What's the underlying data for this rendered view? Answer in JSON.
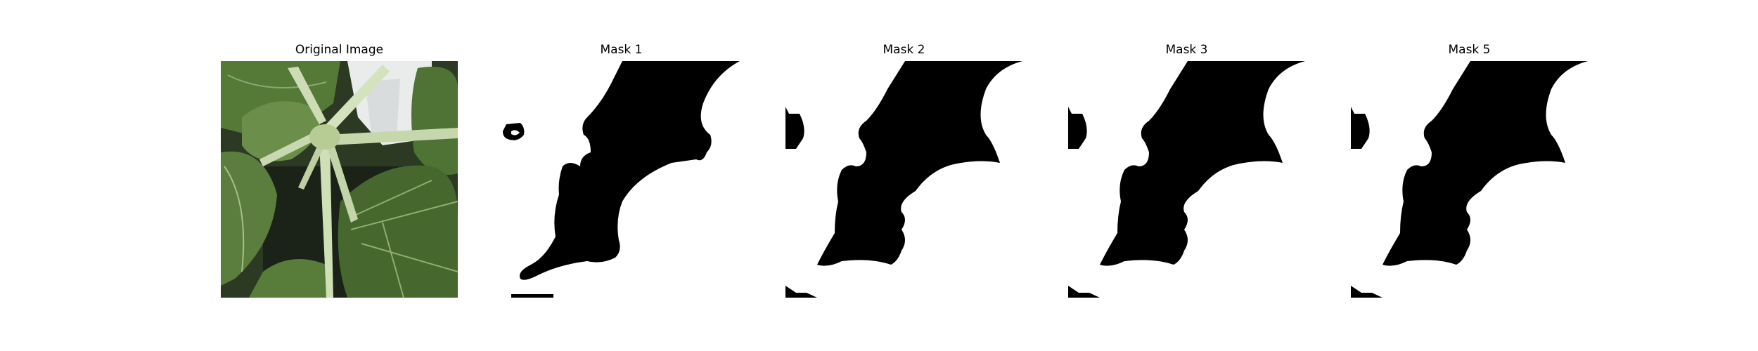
{
  "panels": [
    {
      "title": "Original Image",
      "kind": "photo"
    },
    {
      "title": "Mask 1",
      "kind": "mask"
    },
    {
      "title": "Mask 2",
      "kind": "mask"
    },
    {
      "title": "Mask 3",
      "kind": "mask"
    },
    {
      "title": "Mask 5",
      "kind": "mask"
    }
  ],
  "colors": {
    "background": "#ffffff",
    "mask_fill": "#000000",
    "leaf_dark": "#4d6e34",
    "leaf_mid": "#6f8f4e",
    "stem": "#cddcb4",
    "pot": "#e6e6e6"
  }
}
